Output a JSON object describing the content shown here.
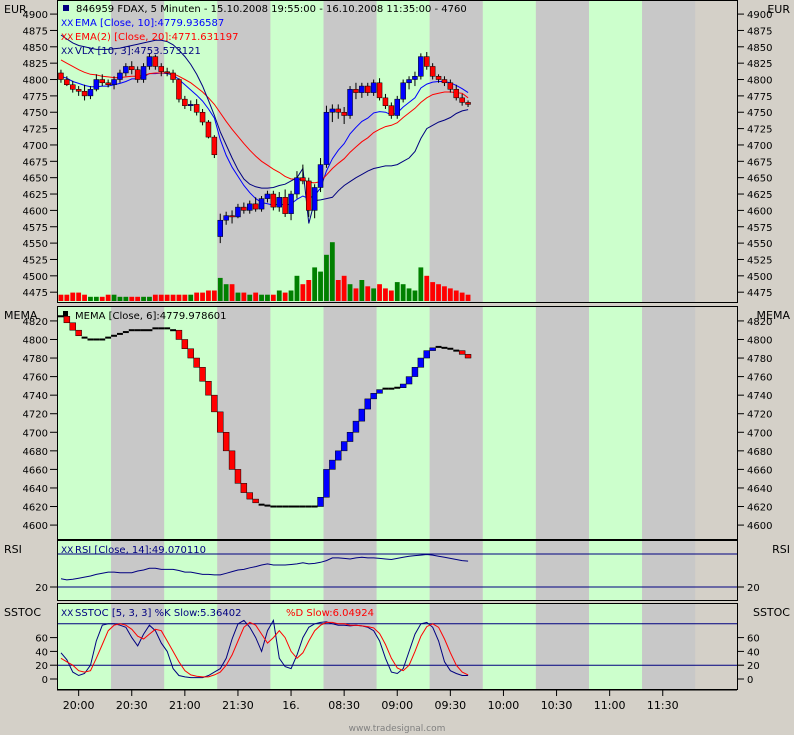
{
  "header": {
    "currency_left": "EUR",
    "currency_right": "EUR",
    "title": "846959  FDAX, 5 Minuten - 15.10.2008 19:55:00 - 16.10.2008 11:35:00 - 4760",
    "legend": [
      {
        "text": "EMA [Close, 10]:4779.936587",
        "color": "#0000ff"
      },
      {
        "text": "EMA(2) [Close, 20]:4771.631197",
        "color": "#ff0000"
      },
      {
        "text": "VLX [10, 3]:4753.573121",
        "color": "#000080"
      }
    ]
  },
  "panels": {
    "mema": {
      "label_left": "MEMA",
      "label_right": "MEMA",
      "legend": "MEMA [Close, 6]:4779.978601"
    },
    "rsi": {
      "label_left": "RSI",
      "label_right": "RSI",
      "legend": "RSI [Close, 14]:49.070110"
    },
    "sstoc": {
      "label_left": "SSTOC",
      "label_right": "SSTOC",
      "legend_k": "SSTOC [5, 3, 3] %K Slow:5.36402",
      "legend_d": "%D Slow:6.04924"
    }
  },
  "watermark": "www.tradesignal.com",
  "colors": {
    "up": "#0000ff",
    "down": "#ff0000",
    "vol_up": "#008000",
    "vol_down": "#ff0000",
    "band_green": "#ccffcc",
    "band_gray": "#c8c8c8",
    "ema10": "#0000ff",
    "ema20": "#ff0000",
    "vlx": "#000080"
  },
  "chart_data": [
    {
      "type": "candlestick",
      "title": "846959  FDAX, 5 Minuten - 15.10.2008 19:55:00 - 16.10.2008 11:35:00 - 4760",
      "ylabel": "EUR",
      "ylim": [
        4460,
        4920
      ],
      "y_ticks": [
        4475,
        4500,
        4525,
        4550,
        4575,
        4600,
        4625,
        4650,
        4675,
        4700,
        4725,
        4750,
        4775,
        4800,
        4825,
        4850,
        4875,
        4900
      ],
      "x_ticks": [
        "20:00",
        "20:30",
        "21:00",
        "21:30",
        "16.",
        "08:30",
        "09:00",
        "09:30",
        "10:00",
        "10:30",
        "11:00",
        "11:30"
      ],
      "x_tick_bar": [
        3.5,
        12.5,
        21.5,
        30.5,
        39.5,
        48.5,
        57.5,
        66.5,
        75.5,
        84.5,
        93.5,
        102.5
      ],
      "band_bars": [
        [
          0,
          9,
          "green"
        ],
        [
          9,
          18,
          "gray"
        ],
        [
          18,
          27,
          "green"
        ],
        [
          27,
          36,
          "gray"
        ],
        [
          36,
          45,
          "green"
        ],
        [
          45,
          54,
          "gray"
        ],
        [
          54,
          63,
          "green"
        ],
        [
          63,
          72,
          "gray"
        ],
        [
          72,
          81,
          "green"
        ],
        [
          81,
          90,
          "gray"
        ],
        [
          90,
          99,
          "green"
        ],
        [
          99,
          108,
          "gray"
        ]
      ],
      "candles": [
        [
          4810,
          4815,
          4795,
          4800
        ],
        [
          4800,
          4805,
          4790,
          4792
        ],
        [
          4792,
          4798,
          4780,
          4785
        ],
        [
          4785,
          4790,
          4775,
          4782
        ],
        [
          4782,
          4792,
          4768,
          4775
        ],
        [
          4775,
          4790,
          4770,
          4785
        ],
        [
          4785,
          4808,
          4782,
          4800
        ],
        [
          4800,
          4808,
          4790,
          4795
        ],
        [
          4795,
          4800,
          4788,
          4792
        ],
        [
          4792,
          4805,
          4785,
          4800
        ],
        [
          4800,
          4815,
          4795,
          4810
        ],
        [
          4810,
          4825,
          4805,
          4820
        ],
        [
          4820,
          4828,
          4808,
          4815
        ],
        [
          4815,
          4820,
          4795,
          4800
        ],
        [
          4800,
          4825,
          4795,
          4820
        ],
        [
          4820,
          4840,
          4815,
          4835
        ],
        [
          4835,
          4838,
          4815,
          4820
        ],
        [
          4820,
          4825,
          4805,
          4812
        ],
        [
          4812,
          4818,
          4805,
          4810
        ],
        [
          4810,
          4815,
          4795,
          4800
        ],
        [
          4800,
          4802,
          4765,
          4770
        ],
        [
          4770,
          4775,
          4755,
          4760
        ],
        [
          4760,
          4768,
          4752,
          4762
        ],
        [
          4762,
          4770,
          4745,
          4750
        ],
        [
          4750,
          4755,
          4730,
          4735
        ],
        [
          4735,
          4738,
          4710,
          4712
        ],
        [
          4712,
          4715,
          4680,
          4685
        ],
        [
          4560,
          4595,
          4550,
          4585
        ],
        [
          4585,
          4598,
          4578,
          4592
        ],
        [
          4592,
          4600,
          4580,
          4590
        ],
        [
          4590,
          4610,
          4588,
          4605
        ],
        [
          4605,
          4612,
          4595,
          4600
        ],
        [
          4600,
          4615,
          4595,
          4610
        ],
        [
          4610,
          4620,
          4598,
          4602
        ],
        [
          4602,
          4622,
          4598,
          4618
        ],
        [
          4618,
          4630,
          4612,
          4625
        ],
        [
          4625,
          4630,
          4600,
          4605
        ],
        [
          4605,
          4628,
          4598,
          4620
        ],
        [
          4620,
          4632,
          4590,
          4595
        ],
        [
          4595,
          4630,
          4585,
          4625
        ],
        [
          4625,
          4660,
          4618,
          4650
        ],
        [
          4650,
          4670,
          4640,
          4645
        ],
        [
          4645,
          4650,
          4590,
          4600
        ],
        [
          4600,
          4640,
          4588,
          4635
        ],
        [
          4635,
          4680,
          4628,
          4670
        ],
        [
          4670,
          4760,
          4665,
          4750
        ],
        [
          4750,
          4762,
          4735,
          4755
        ],
        [
          4755,
          4762,
          4740,
          4750
        ],
        [
          4750,
          4758,
          4732,
          4745
        ],
        [
          4745,
          4790,
          4740,
          4785
        ],
        [
          4785,
          4795,
          4770,
          4780
        ],
        [
          4780,
          4795,
          4772,
          4790
        ],
        [
          4790,
          4795,
          4775,
          4780
        ],
        [
          4780,
          4800,
          4775,
          4795
        ],
        [
          4795,
          4802,
          4768,
          4772
        ],
        [
          4772,
          4778,
          4755,
          4760
        ],
        [
          4760,
          4765,
          4740,
          4745
        ],
        [
          4745,
          4775,
          4740,
          4770
        ],
        [
          4770,
          4800,
          4765,
          4795
        ],
        [
          4795,
          4805,
          4785,
          4800
        ],
        [
          4800,
          4812,
          4790,
          4805
        ],
        [
          4805,
          4840,
          4800,
          4835
        ],
        [
          4835,
          4842,
          4815,
          4820
        ],
        [
          4820,
          4825,
          4800,
          4805
        ],
        [
          4805,
          4808,
          4795,
          4800
        ],
        [
          4800,
          4805,
          4790,
          4795
        ],
        [
          4795,
          4800,
          4780,
          4785
        ],
        [
          4785,
          4792,
          4768,
          4772
        ],
        [
          4772,
          4778,
          4760,
          4765
        ],
        [
          4765,
          4768,
          4758,
          4762
        ]
      ],
      "volume": [
        3,
        3,
        4,
        4,
        3,
        2,
        2,
        2,
        3,
        3,
        2,
        2,
        2,
        2,
        2,
        2,
        3,
        3,
        3,
        3,
        3,
        3,
        3,
        4,
        4,
        5,
        5,
        11,
        8,
        8,
        4,
        4,
        3,
        4,
        3,
        3,
        3,
        5,
        4,
        5,
        12,
        8,
        10,
        16,
        14,
        22,
        28,
        10,
        12,
        8,
        6,
        10,
        7,
        6,
        8,
        6,
        5,
        9,
        8,
        6,
        5,
        16,
        12,
        9,
        8,
        7,
        6,
        5,
        4,
        3
      ],
      "series": [
        {
          "name": "EMA [Close, 10]",
          "values": [
            4805,
            4802,
            4797,
            4794,
            4791,
            4789,
            4789,
            4790,
            4790,
            4792,
            4794,
            4797,
            4801,
            4801,
            4804,
            4809,
            4809,
            4810,
            4809,
            4807,
            4800,
            4792,
            4784,
            4776,
            4767,
            4755,
            4741,
            4708,
            4684,
            4666,
            4652,
            4638,
            4627,
            4618,
            4612,
            4610,
            4608,
            4610,
            4608,
            4610,
            4617,
            4622,
            4618,
            4623,
            4634,
            4660,
            4679,
            4692,
            4702,
            4717,
            4727,
            4736,
            4741,
            4749,
            4751,
            4750,
            4746,
            4749,
            4758,
            4765,
            4772,
            4787,
            4793,
            4796,
            4797,
            4797,
            4795,
            4791,
            4786,
            4780
          ]
        },
        {
          "name": "EMA(2) [Close, 20]",
          "values": [
            4830,
            4825,
            4820,
            4815,
            4811,
            4808,
            4807,
            4805,
            4804,
            4803,
            4803,
            4804,
            4805,
            4805,
            4806,
            4809,
            4810,
            4810,
            4810,
            4809,
            4805,
            4800,
            4795,
            4788,
            4781,
            4772,
            4762,
            4749,
            4736,
            4724,
            4713,
            4702,
            4692,
            4683,
            4675,
            4669,
            4663,
            4658,
            4652,
            4648,
            4648,
            4647,
            4643,
            4642,
            4644,
            4654,
            4664,
            4672,
            4679,
            4689,
            4697,
            4705,
            4711,
            4719,
            4724,
            4728,
            4730,
            4734,
            4742,
            4749,
            4756,
            4765,
            4772,
            4777,
            4779,
            4781,
            4781,
            4780,
            4779,
            4772
          ]
        },
        {
          "name": "VLX [10, 3]",
          "values": [
            4868,
            4862,
            4856,
            4852,
            4850,
            4848,
            4846,
            4846,
            4846,
            4847,
            4848,
            4850,
            4852,
            4854,
            4856,
            4858,
            4860,
            4860,
            4858,
            4853,
            4845,
            4835,
            4823,
            4808,
            4790,
            4768,
            4745,
            4720,
            4700,
            4680,
            4662,
            4648,
            4640,
            4636,
            4634,
            4634,
            4635,
            4638,
            4640,
            4645,
            4650,
            4664,
            4580,
            4615,
            4616,
            4618,
            4620,
            4630,
            4638,
            4644,
            4650,
            4655,
            4660,
            4664,
            4666,
            4668,
            4668,
            4670,
            4675,
            4680,
            4690,
            4710,
            4725,
            4730,
            4735,
            4738,
            4742,
            4748,
            4752,
            4754
          ]
        }
      ]
    },
    {
      "type": "step",
      "title": "MEMA [Close, 6]:4779.978601",
      "ylim": [
        4585,
        4835
      ],
      "y_ticks": [
        4600,
        4620,
        4640,
        4660,
        4680,
        4700,
        4720,
        4740,
        4760,
        4780,
        4800,
        4820
      ],
      "values": [
        4825,
        4818,
        4810,
        4804,
        4802,
        4800,
        4800,
        4800,
        4802,
        4804,
        4806,
        4808,
        4810,
        4810,
        4810,
        4810,
        4812,
        4812,
        4812,
        4810,
        4800,
        4790,
        4780,
        4770,
        4755,
        4740,
        4722,
        4700,
        4680,
        4660,
        4645,
        4635,
        4628,
        4624,
        4622,
        4621,
        4620,
        4620,
        4620,
        4620,
        4620,
        4620,
        4620,
        4620,
        4630,
        4660,
        4670,
        4680,
        4690,
        4700,
        4712,
        4725,
        4736,
        4742,
        4746,
        4747,
        4747,
        4748,
        4752,
        4760,
        4770,
        4780,
        4788,
        4791,
        4792,
        4791,
        4790,
        4788,
        4784,
        4780
      ]
    },
    {
      "type": "line",
      "title": "RSI [Close, 14]:49.070110",
      "y_ticks": [
        20
      ],
      "ylim": [
        0,
        100
      ],
      "ref_lines": [
        20,
        80
      ],
      "values": [
        35,
        33,
        34,
        36,
        38,
        40,
        43,
        45,
        47,
        47,
        46,
        46,
        46,
        49,
        51,
        54,
        54,
        52,
        52,
        52,
        50,
        47,
        47,
        45,
        43,
        43,
        42,
        42,
        45,
        48,
        51,
        52,
        55,
        57,
        60,
        62,
        60,
        60,
        60,
        61,
        62,
        64,
        62,
        63,
        65,
        68,
        73,
        73,
        72,
        71,
        73,
        74,
        73,
        73,
        72,
        71,
        70,
        72,
        74,
        76,
        77,
        78,
        79,
        78,
        76,
        74,
        72,
        70,
        68,
        67
      ]
    },
    {
      "type": "line",
      "title": "SSTOC [5, 3, 3] %K Slow:5.36402 %D Slow:6.04924",
      "y_ticks": [
        0,
        20,
        40,
        60
      ],
      "ylim": [
        0,
        100
      ],
      "ref_lines": [
        20,
        80
      ],
      "series": [
        {
          "name": "%K Slow",
          "values": [
            38,
            28,
            10,
            5,
            8,
            20,
            55,
            78,
            80,
            80,
            78,
            75,
            60,
            48,
            65,
            78,
            70,
            52,
            40,
            15,
            5,
            3,
            2,
            2,
            2,
            5,
            10,
            15,
            30,
            58,
            80,
            85,
            75,
            60,
            40,
            70,
            85,
            30,
            18,
            15,
            35,
            60,
            75,
            80,
            82,
            83,
            80,
            78,
            78,
            77,
            78,
            77,
            75,
            70,
            55,
            30,
            10,
            8,
            15,
            40,
            65,
            80,
            82,
            75,
            55,
            25,
            12,
            8,
            5,
            5
          ]
        },
        {
          "name": "%D Slow",
          "values": [
            30,
            25,
            20,
            12,
            10,
            12,
            30,
            50,
            70,
            78,
            80,
            78,
            72,
            62,
            58,
            65,
            72,
            70,
            55,
            40,
            25,
            12,
            6,
            4,
            3,
            3,
            6,
            10,
            20,
            35,
            55,
            75,
            82,
            78,
            65,
            52,
            60,
            70,
            60,
            40,
            30,
            38,
            55,
            70,
            78,
            82,
            82,
            80,
            80,
            78,
            78,
            77,
            76,
            74,
            66,
            50,
            30,
            16,
            12,
            20,
            40,
            62,
            76,
            80,
            75,
            58,
            38,
            20,
            10,
            6
          ]
        }
      ]
    }
  ]
}
